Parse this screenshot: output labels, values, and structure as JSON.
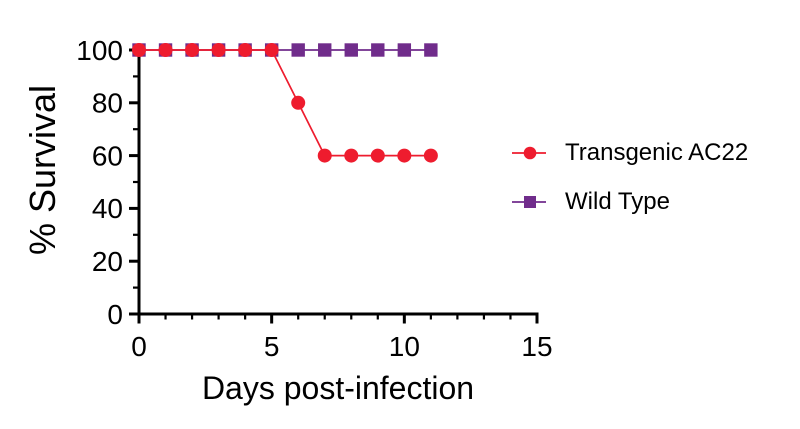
{
  "chart_data": {
    "type": "line",
    "title": "",
    "xlabel": "Days post-infection",
    "ylabel": "% Survival",
    "xlim": [
      0,
      15
    ],
    "ylim": [
      0,
      100
    ],
    "x_major_ticks": [
      0,
      5,
      10,
      15
    ],
    "x_minor_tick_step": 1,
    "y_major_ticks": [
      0,
      20,
      40,
      60,
      80,
      100
    ],
    "y_minor_tick_step": 10,
    "grid": false,
    "legend_position": "right-center",
    "series": [
      {
        "name": "Wild Type",
        "color": "#702C8B",
        "marker": "square",
        "x": [
          0,
          1,
          2,
          3,
          4,
          5,
          6,
          7,
          8,
          9,
          10,
          11
        ],
        "y": [
          100,
          100,
          100,
          100,
          100,
          100,
          100,
          100,
          100,
          100,
          100,
          100
        ]
      },
      {
        "name": "Transgenic AC22",
        "color": "#EE1C2E",
        "marker": "circle",
        "x": [
          0,
          1,
          2,
          3,
          4,
          5,
          6,
          7,
          8,
          9,
          10,
          11
        ],
        "y": [
          100,
          100,
          100,
          100,
          100,
          100,
          80,
          60,
          60,
          60,
          60,
          60
        ]
      }
    ]
  },
  "legend": {
    "items": [
      {
        "label": "Transgenic AC22",
        "color": "#EE1C2E",
        "marker": "circle"
      },
      {
        "label": "Wild Type",
        "color": "#702C8B",
        "marker": "square"
      }
    ]
  },
  "colors": {
    "axis": "#000000",
    "text": "#000000",
    "background": "#FFFFFF"
  }
}
